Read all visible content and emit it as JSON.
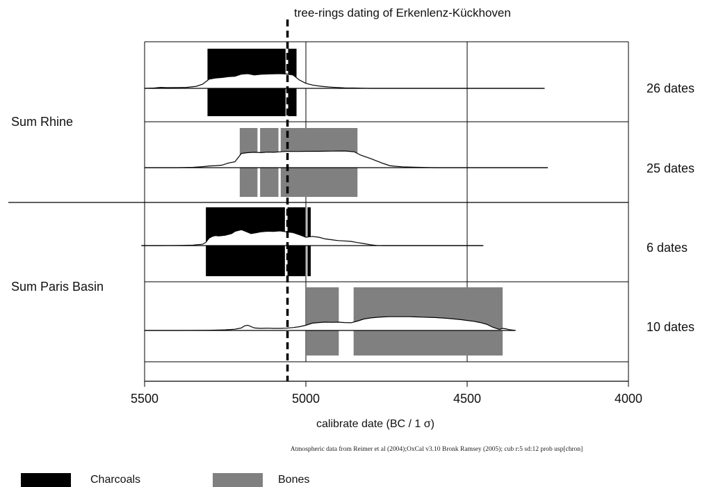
{
  "chart_data": {
    "type": "range",
    "title": "tree-rings dating of Erkenlenz-Kückhoven",
    "xlabel": "calibrate date (BC / 1 σ)",
    "x_direction": "descending",
    "xlim": [
      5500,
      4000
    ],
    "x_ticks": [
      5500,
      5000,
      4500,
      4000
    ],
    "grid_x": [
      5000,
      4500
    ],
    "reference_line": {
      "x": 5057,
      "style": "dashed"
    },
    "groups": [
      {
        "name": "Sum Rhine",
        "rows": [
          0,
          1
        ]
      },
      {
        "name": "Sum Paris Basin",
        "rows": [
          2,
          3
        ]
      }
    ],
    "rows": [
      {
        "material": "Charcoals",
        "count_label": "26 dates",
        "ranges": [
          [
            5305,
            5063
          ],
          [
            5055,
            5029
          ]
        ],
        "curve_extent": [
          5500,
          4260
        ],
        "curve": [
          [
            5500,
            0
          ],
          [
            5470,
            0.02
          ],
          [
            5450,
            0.06
          ],
          [
            5430,
            0.04
          ],
          [
            5400,
            0.05
          ],
          [
            5370,
            0.06
          ],
          [
            5340,
            0.12
          ],
          [
            5320,
            0.25
          ],
          [
            5300,
            0.55
          ],
          [
            5280,
            0.62
          ],
          [
            5260,
            0.65
          ],
          [
            5240,
            0.7
          ],
          [
            5220,
            0.72
          ],
          [
            5200,
            0.85
          ],
          [
            5180,
            0.88
          ],
          [
            5160,
            0.8
          ],
          [
            5140,
            0.84
          ],
          [
            5120,
            0.86
          ],
          [
            5100,
            0.87
          ],
          [
            5080,
            0.88
          ],
          [
            5060,
            0.86
          ],
          [
            5040,
            0.8
          ],
          [
            5020,
            0.5
          ],
          [
            5000,
            0.3
          ],
          [
            4980,
            0.2
          ],
          [
            4960,
            0.14
          ],
          [
            4940,
            0.1
          ],
          [
            4920,
            0.07
          ],
          [
            4900,
            0.05
          ],
          [
            4880,
            0.03
          ],
          [
            4850,
            0.02
          ],
          [
            4820,
            0.01
          ],
          [
            4800,
            0
          ],
          [
            4260,
            0
          ]
        ]
      },
      {
        "material": "Bones",
        "count_label": "25 dates",
        "ranges": [
          [
            5205,
            5150
          ],
          [
            5142,
            5085
          ],
          [
            5078,
            4840
          ]
        ],
        "curve_extent": [
          5500,
          4250
        ],
        "curve": [
          [
            5500,
            0
          ],
          [
            5400,
            0
          ],
          [
            5350,
            0.02
          ],
          [
            5320,
            0.06
          ],
          [
            5300,
            0.1
          ],
          [
            5280,
            0.12
          ],
          [
            5260,
            0.15
          ],
          [
            5240,
            0.28
          ],
          [
            5220,
            0.35
          ],
          [
            5200,
            0.85
          ],
          [
            5180,
            0.9
          ],
          [
            5160,
            0.92
          ],
          [
            5140,
            0.9
          ],
          [
            5120,
            0.93
          ],
          [
            5100,
            0.92
          ],
          [
            5080,
            0.95
          ],
          [
            5060,
            0.97
          ],
          [
            5040,
            0.97
          ],
          [
            5020,
            0.97
          ],
          [
            5000,
            0.98
          ],
          [
            4960,
            0.98
          ],
          [
            4920,
            0.99
          ],
          [
            4880,
            1.0
          ],
          [
            4850,
            0.95
          ],
          [
            4830,
            0.75
          ],
          [
            4800,
            0.55
          ],
          [
            4780,
            0.4
          ],
          [
            4760,
            0.25
          ],
          [
            4740,
            0.12
          ],
          [
            4720,
            0.08
          ],
          [
            4700,
            0.05
          ],
          [
            4650,
            0.02
          ],
          [
            4600,
            0
          ],
          [
            4250,
            0
          ]
        ]
      },
      {
        "material": "Charcoals",
        "count_label": "6 dates",
        "ranges": [
          [
            5310,
            5065
          ],
          [
            5057,
            5002
          ],
          [
            4995,
            4985
          ]
        ],
        "curve_extent": [
          5510,
          4450
        ],
        "curve": [
          [
            5510,
            0
          ],
          [
            5450,
            0
          ],
          [
            5400,
            0.01
          ],
          [
            5350,
            0.03
          ],
          [
            5320,
            0.08
          ],
          [
            5310,
            0.2
          ],
          [
            5300,
            0.45
          ],
          [
            5290,
            0.55
          ],
          [
            5280,
            0.6
          ],
          [
            5270,
            0.58
          ],
          [
            5250,
            0.62
          ],
          [
            5230,
            0.72
          ],
          [
            5220,
            0.85
          ],
          [
            5200,
            0.95
          ],
          [
            5190,
            0.88
          ],
          [
            5170,
            0.72
          ],
          [
            5160,
            0.75
          ],
          [
            5140,
            0.82
          ],
          [
            5120,
            0.86
          ],
          [
            5100,
            0.85
          ],
          [
            5080,
            0.88
          ],
          [
            5060,
            0.82
          ],
          [
            5040,
            0.78
          ],
          [
            5020,
            0.65
          ],
          [
            5000,
            0.5
          ],
          [
            4980,
            0.55
          ],
          [
            4960,
            0.5
          ],
          [
            4940,
            0.4
          ],
          [
            4920,
            0.35
          ],
          [
            4900,
            0.3
          ],
          [
            4880,
            0.28
          ],
          [
            4860,
            0.25
          ],
          [
            4840,
            0.18
          ],
          [
            4820,
            0.12
          ],
          [
            4800,
            0.05
          ],
          [
            4780,
            0.01
          ],
          [
            4760,
            0
          ],
          [
            4450,
            0
          ]
        ]
      },
      {
        "material": "Bones",
        "count_label": "10 dates",
        "ranges": [
          [
            4998,
            4898
          ],
          [
            4852,
            4390
          ]
        ],
        "curve_extent": [
          5500,
          4350
        ],
        "curve": [
          [
            5500,
            0
          ],
          [
            5400,
            0
          ],
          [
            5300,
            0.01
          ],
          [
            5250,
            0.03
          ],
          [
            5220,
            0.06
          ],
          [
            5200,
            0.12
          ],
          [
            5190,
            0.22
          ],
          [
            5180,
            0.25
          ],
          [
            5160,
            0.12
          ],
          [
            5140,
            0.1
          ],
          [
            5120,
            0.11
          ],
          [
            5100,
            0.1
          ],
          [
            5080,
            0.1
          ],
          [
            5060,
            0.11
          ],
          [
            5040,
            0.14
          ],
          [
            5020,
            0.18
          ],
          [
            5000,
            0.25
          ],
          [
            4980,
            0.35
          ],
          [
            4960,
            0.38
          ],
          [
            4940,
            0.4
          ],
          [
            4920,
            0.39
          ],
          [
            4900,
            0.4
          ],
          [
            4880,
            0.38
          ],
          [
            4860,
            0.37
          ],
          [
            4840,
            0.45
          ],
          [
            4820,
            0.55
          ],
          [
            4800,
            0.6
          ],
          [
            4780,
            0.63
          ],
          [
            4760,
            0.65
          ],
          [
            4740,
            0.66
          ],
          [
            4720,
            0.66
          ],
          [
            4700,
            0.66
          ],
          [
            4680,
            0.66
          ],
          [
            4660,
            0.65
          ],
          [
            4640,
            0.64
          ],
          [
            4620,
            0.63
          ],
          [
            4600,
            0.62
          ],
          [
            4580,
            0.6
          ],
          [
            4560,
            0.58
          ],
          [
            4540,
            0.55
          ],
          [
            4520,
            0.52
          ],
          [
            4500,
            0.48
          ],
          [
            4480,
            0.44
          ],
          [
            4460,
            0.38
          ],
          [
            4440,
            0.3
          ],
          [
            4420,
            0.15
          ],
          [
            4400,
            0.05
          ],
          [
            4390,
            0.1
          ],
          [
            4380,
            0.08
          ],
          [
            4370,
            0.04
          ],
          [
            4350,
            0
          ]
        ]
      }
    ],
    "legend": [
      {
        "label": "Charcoals",
        "color": "#000000"
      },
      {
        "label": "Bones",
        "color": "#808080"
      }
    ],
    "legend_position": "bottom",
    "note": "Atmospheric data from Reimer et al (2004);OxCal v3.10 Bronk Ramsey (2005); cub r:5 sd:12 prob usp[chron]"
  },
  "colors": {
    "charcoals": "#000000",
    "bones": "#808080",
    "lines": "#000000"
  }
}
